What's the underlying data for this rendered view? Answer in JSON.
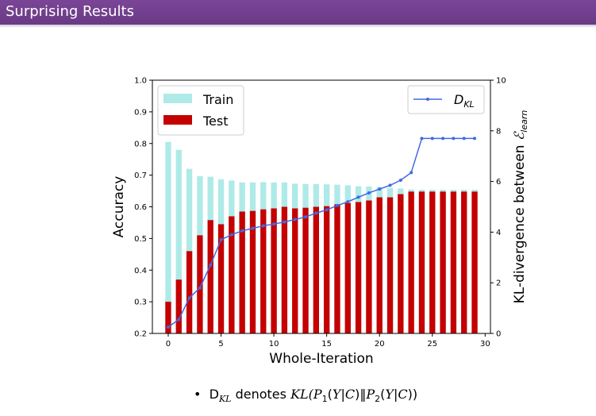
{
  "slide": {
    "title": "Surprising Results",
    "bullet": {
      "symbol": "•",
      "term": "D",
      "term_sub": "KL",
      "connector": "denotes",
      "expression": "KL(P1(Y|C)||P2(Y|C))",
      "expr_kl": "KL(",
      "expr_p1": "P",
      "expr_p1_sub": "1",
      "expr_mid1": "(",
      "expr_y1": "Y",
      "expr_bar1": "|",
      "expr_c1": "C",
      "expr_close1": ")",
      "expr_norm": "‖",
      "expr_p2": "P",
      "expr_p2_sub": "2",
      "expr_mid2": "(",
      "expr_y2": "Y",
      "expr_bar2": "|",
      "expr_c2": "C",
      "expr_close2": "))"
    }
  },
  "chart_data": {
    "type": "bar",
    "xlabel": "Whole-Iteration",
    "ylabel": "Accuracy",
    "y2label": "KL-divergence between",
    "y2label_symbol": "ℰ",
    "y2label_sub": "learn",
    "ylim": [
      0.2,
      1.0
    ],
    "y2lim": [
      0,
      10
    ],
    "xlim": [
      -1.5,
      30.5
    ],
    "xticks": [
      0,
      5,
      10,
      15,
      20,
      25,
      30
    ],
    "yticks": [
      0.2,
      0.3,
      0.4,
      0.5,
      0.6,
      0.7,
      0.8,
      0.9,
      1.0
    ],
    "y2ticks": [
      0,
      2,
      4,
      6,
      8,
      10
    ],
    "x": [
      0,
      1,
      2,
      3,
      4,
      5,
      6,
      7,
      8,
      9,
      10,
      11,
      12,
      13,
      14,
      15,
      16,
      17,
      18,
      19,
      20,
      21,
      22,
      23,
      24,
      25,
      26,
      27,
      28,
      29
    ],
    "series": [
      {
        "name": "Train",
        "color": "#aeeae8",
        "values": [
          0.805,
          0.78,
          0.72,
          0.697,
          0.695,
          0.687,
          0.683,
          0.677,
          0.677,
          0.678,
          0.677,
          0.677,
          0.673,
          0.672,
          0.672,
          0.671,
          0.67,
          0.668,
          0.665,
          0.664,
          0.662,
          0.66,
          0.658,
          0.655,
          0.654,
          0.654,
          0.654,
          0.654,
          0.654,
          0.654
        ]
      },
      {
        "name": "Test",
        "color": "#c40000",
        "values": [
          0.3,
          0.37,
          0.46,
          0.51,
          0.558,
          0.545,
          0.57,
          0.585,
          0.587,
          0.592,
          0.595,
          0.6,
          0.595,
          0.597,
          0.6,
          0.602,
          0.608,
          0.612,
          0.615,
          0.62,
          0.63,
          0.63,
          0.64,
          0.648,
          0.648,
          0.648,
          0.648,
          0.648,
          0.648,
          0.648
        ]
      },
      {
        "name": "D_KL",
        "label_main": "D",
        "label_sub": "KL",
        "color": "#4169e1",
        "axis": "right",
        "values": [
          0.25,
          0.55,
          1.4,
          1.8,
          2.7,
          3.7,
          3.9,
          4.05,
          4.15,
          4.25,
          4.32,
          4.4,
          4.5,
          4.6,
          4.75,
          4.88,
          5.05,
          5.2,
          5.38,
          5.55,
          5.7,
          5.85,
          6.05,
          6.35,
          7.7,
          7.7,
          7.7,
          7.7,
          7.7,
          7.7
        ]
      }
    ],
    "legend_left": [
      "Train",
      "Test"
    ],
    "legend_left_position": "upper-left",
    "legend_right_position": "upper-right"
  }
}
